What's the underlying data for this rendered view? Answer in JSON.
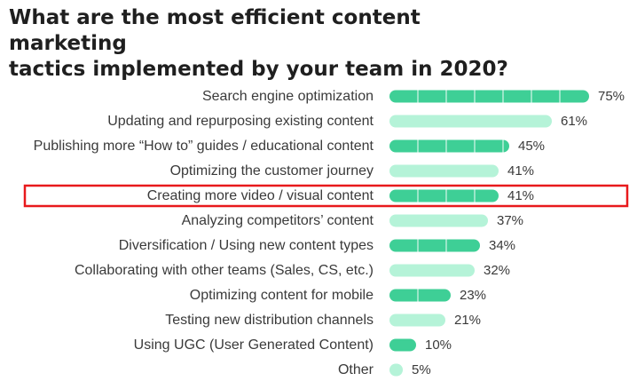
{
  "title_lines": [
    "What are the most efficient content marketing",
    "tactics implemented by your team in 2020?"
  ],
  "colors": {
    "primary_bar": "#3ecf96",
    "secondary_bar": "#b5f3d8",
    "highlight_border": "#e8191c",
    "text": "#3a3a3a"
  },
  "highlighted_category": "Creating more video / visual content",
  "chart_data": {
    "type": "bar",
    "orientation": "horizontal",
    "title": "What are the most efficient content marketing tactics implemented by your team in 2020?",
    "categories": [
      "Search engine optimization",
      "Updating and repurposing existing content",
      "Publishing more “How to” guides / educational content",
      "Optimizing the customer journey",
      "Creating more video / visual content",
      "Analyzing competitors’ content",
      "Diversification / Using new content types",
      "Collaborating with other teams (Sales, CS, etc.)",
      "Optimizing content for mobile",
      "Testing new distribution channels",
      "Using UGC (User Generated Content)",
      "Other"
    ],
    "values": [
      75,
      61,
      45,
      41,
      41,
      37,
      34,
      32,
      23,
      21,
      10,
      5
    ],
    "value_labels": [
      "75%",
      "61%",
      "45%",
      "41%",
      "41%",
      "37%",
      "34%",
      "32%",
      "23%",
      "21%",
      "10%",
      "5%"
    ],
    "xlim": [
      0,
      100
    ],
    "grid": false,
    "legend": "none"
  }
}
